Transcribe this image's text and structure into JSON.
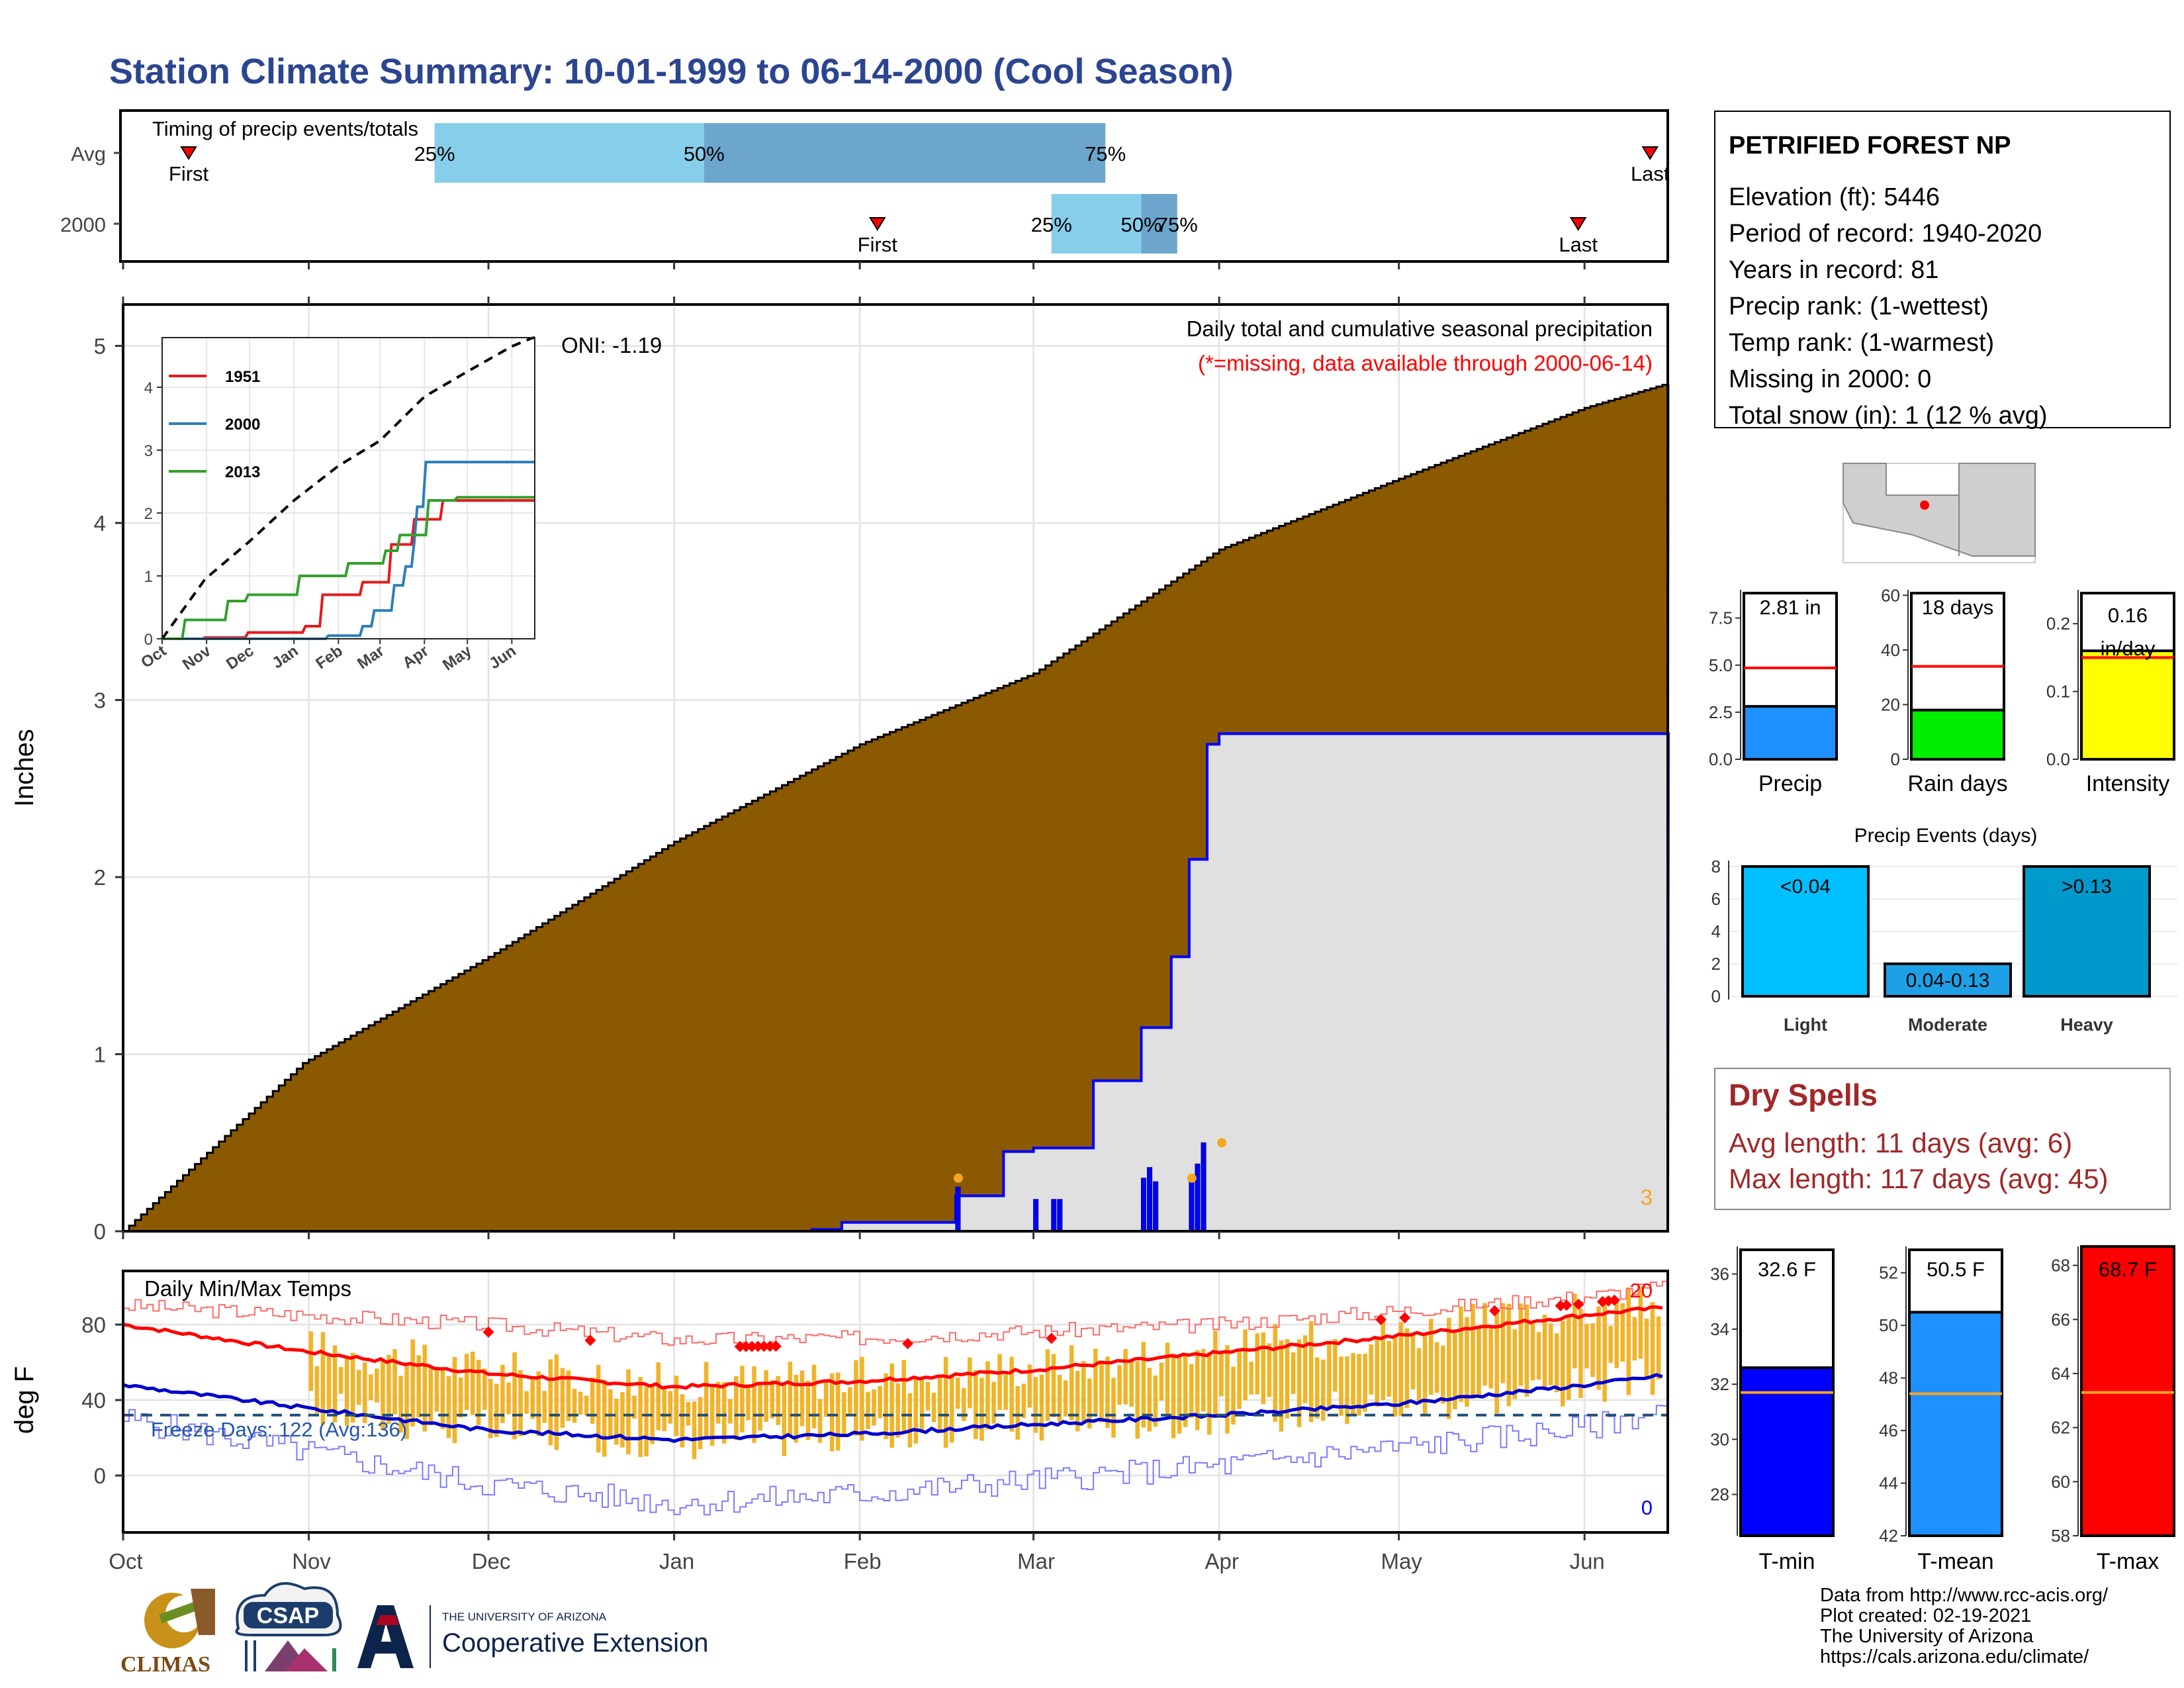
{
  "title": "Station Climate Summary: 10-01-1999 to 06-14-2000 (Cool Season)",
  "timing_panel": {
    "label": "Timing of precip events/totals",
    "rows": [
      {
        "name": "Avg",
        "first_label": "First",
        "last_label": "Last",
        "first": 1,
        "last": 245,
        "p25": 52,
        "p50": 97,
        "p75": 164,
        "p25_label": "25%",
        "p50_label": "50%",
        "p75_label": "75%"
      },
      {
        "name": "2000",
        "first_label": "First",
        "last_label": "Last",
        "first": 116,
        "last": 233,
        "p25": 155,
        "p50": 170,
        "p75": 176,
        "p25_label": "25%",
        "p50_label": "50%",
        "p75_label": "75%"
      }
    ]
  },
  "precip_panel": {
    "caption": "Daily total and cumulative seasonal precipitation",
    "missing_note": "(*=missing, data available through 2000-06-14)",
    "oni": "ONI: -1.19",
    "ylabel": "Inches",
    "yticks": [
      "0",
      "1",
      "2",
      "3",
      "4",
      "5"
    ],
    "missing_count": "3"
  },
  "inset": {
    "yticks": [
      "0",
      "1",
      "2",
      "3",
      "4"
    ],
    "xticks": [
      "Oct",
      "Nov",
      "Dec",
      "Jan",
      "Feb",
      "Mar",
      "Apr",
      "May",
      "Jun"
    ],
    "legend": [
      {
        "name": "1951",
        "color": "#e31a1c"
      },
      {
        "name": "2000",
        "color": "#2c7fb8"
      },
      {
        "name": "2013",
        "color": "#33a02c"
      }
    ]
  },
  "temp_panel": {
    "title": "Daily Min/Max Temps",
    "freeze_label": "Freeze Days: 122 (Avg:136)",
    "ylabel": "deg F",
    "yticks": [
      "0",
      "40",
      "80"
    ],
    "record_high_count": "20",
    "record_low_count": "0"
  },
  "months": [
    "Oct",
    "Nov",
    "Dec",
    "Jan",
    "Feb",
    "Mar",
    "Apr",
    "May",
    "Jun"
  ],
  "station": {
    "name": "PETRIFIED FOREST NP",
    "lines": [
      "Elevation (ft): 5446",
      "Period of record: 1940-2020",
      "Years in record: 81",
      "Precip rank:  (1-wettest)",
      "Temp rank:  (1-warmest)",
      "Missing in 2000: 0",
      "Total snow (in): 1 (12 % avg)"
    ]
  },
  "summary_bars": [
    {
      "label": "Precip",
      "value_label": "2.81 in",
      "color": "#1e90ff",
      "value": 2.81,
      "avg": 4.85,
      "ymax": 9,
      "ticks": [
        "0.0",
        "2.5",
        "5.0",
        "7.5"
      ],
      "tickvals": [
        0,
        2.5,
        5,
        7.5
      ]
    },
    {
      "label": "Rain days",
      "value_label": "18 days",
      "color": "#00ee00",
      "value": 18,
      "avg": 34,
      "ymax": 62,
      "ticks": [
        "0",
        "20",
        "40",
        "60"
      ],
      "tickvals": [
        0,
        20,
        40,
        60
      ]
    },
    {
      "label": "Intensity",
      "value_label": "0.16 in/day",
      "color": "#ffff00",
      "value": 0.16,
      "avg": 0.15,
      "ymax": 0.25,
      "ticks": [
        "0.0",
        "0.1",
        "0.2"
      ],
      "tickvals": [
        0,
        0.1,
        0.2
      ]
    }
  ],
  "precip_events": {
    "title": "Precip Events (days)",
    "yticks": [
      "0",
      "2",
      "4",
      "6",
      "8"
    ],
    "bars": [
      {
        "label": "Light",
        "inner": "<0.04",
        "value": 8,
        "color": "#00bfff"
      },
      {
        "label": "Moderate",
        "inner": "0.04-0.13",
        "value": 2,
        "color": "#1ea0e6"
      },
      {
        "label": "Heavy",
        "inner": ">0.13",
        "value": 8,
        "color": "#0099cc"
      }
    ]
  },
  "dry_spells": {
    "title": "Dry Spells",
    "avg_line": "Avg length: 11 days (avg: 6)",
    "max_line": "Max length: 117 days (avg: 45)"
  },
  "temp_bars": [
    {
      "label": "T-min",
      "value_label": "32.6 F",
      "color": "#0000ff",
      "value": 32.6,
      "avg": 31.7,
      "ymin": 26.5,
      "ymax": 37,
      "ticks": [
        "28",
        "30",
        "32",
        "34",
        "36"
      ],
      "tickvals": [
        28,
        30,
        32,
        34,
        36
      ]
    },
    {
      "label": "T-mean",
      "value_label": "50.5 F",
      "color": "#1e90ff",
      "value": 50.5,
      "avg": 47.4,
      "ymin": 42,
      "ymax": 53,
      "ticks": [
        "42",
        "44",
        "46",
        "48",
        "50",
        "52"
      ],
      "tickvals": [
        42,
        44,
        46,
        48,
        50,
        52
      ]
    },
    {
      "label": "T-max",
      "value_label": "68.7 F",
      "color": "#ff0000",
      "value": 68.7,
      "avg": 63.3,
      "ymin": 58,
      "ymax": 68.7,
      "ticks": [
        "58",
        "60",
        "62",
        "64",
        "66",
        "68"
      ],
      "tickvals": [
        58,
        60,
        62,
        64,
        66,
        68
      ]
    }
  ],
  "footer_lines": [
    "Data from http://www.rcc-acis.org/",
    "Plot created: 02-19-2021",
    "The University of Arizona",
    "https://cals.arizona.edu/climate/"
  ],
  "logos": {
    "climas": "CLIMAS",
    "csap": "CSAP",
    "ua_small": "THE UNIVERSITY OF ARIZONA",
    "ua_big": "Cooperative Extension"
  },
  "colors": {
    "title": "#2b4590",
    "cumavg": "#8b5a00",
    "cum2000": "#0000ff",
    "tempbar": "#f0b429"
  },
  "chart_data": [
    {
      "type": "area",
      "title": "Daily total and cumulative seasonal precipitation",
      "ylabel": "Inches",
      "ylim": [
        0,
        5.2
      ],
      "x_unit": "days since Oct 1",
      "series": [
        {
          "name": "Avg cumulative",
          "x": [
            0,
            30,
            61,
            92,
            123,
            152,
            183,
            213,
            244,
            257
          ],
          "y": [
            0,
            0.95,
            1.55,
            2.2,
            2.75,
            3.15,
            3.85,
            4.25,
            4.65,
            4.78
          ]
        },
        {
          "name": "2000 cumulative",
          "x": [
            0,
            115,
            120,
            139,
            147,
            152,
            162,
            170,
            175,
            178,
            181,
            183,
            240,
            257
          ],
          "y": [
            0,
            0.01,
            0.05,
            0.2,
            0.45,
            0.47,
            0.85,
            1.15,
            1.55,
            2.1,
            2.75,
            2.81,
            2.81,
            2.81
          ]
        },
        {
          "name": "2000 daily",
          "x": [
            139,
            152,
            155,
            156,
            170,
            171,
            172,
            178,
            179,
            180
          ],
          "y": [
            0.25,
            0.18,
            0.18,
            0.18,
            0.3,
            0.36,
            0.28,
            0.3,
            0.38,
            0.5
          ]
        }
      ]
    },
    {
      "type": "line",
      "title": "",
      "x_unit": "days since Oct 1",
      "ylim": [
        0,
        4.6
      ],
      "series": [
        {
          "name": "1951",
          "x": [
            0,
            30,
            60,
            100,
            112,
            140,
            160,
            175,
            195,
            245,
            260
          ],
          "y": [
            0,
            0.02,
            0.1,
            0.2,
            0.7,
            0.9,
            1.5,
            1.9,
            2.2,
            2.2,
            2.2
          ]
        },
        {
          "name": "2000",
          "x": [
            0,
            100,
            115,
            139,
            147,
            162,
            170,
            175,
            178,
            183,
            260
          ],
          "y": [
            0,
            0,
            0.05,
            0.2,
            0.45,
            0.85,
            1.15,
            1.55,
            2.1,
            2.81,
            2.81
          ]
        },
        {
          "name": "2013",
          "x": [
            0,
            15,
            45,
            60,
            95,
            130,
            155,
            165,
            185,
            205,
            260
          ],
          "y": [
            0,
            0.3,
            0.6,
            0.7,
            1.0,
            1.2,
            1.4,
            1.65,
            2.2,
            2.25,
            2.25
          ]
        },
        {
          "name": "Avg",
          "x": [
            0,
            30,
            61,
            92,
            123,
            152,
            183,
            213,
            244,
            260
          ],
          "y": [
            0,
            0.95,
            1.55,
            2.2,
            2.75,
            3.15,
            3.85,
            4.25,
            4.65,
            4.8
          ]
        }
      ]
    },
    {
      "type": "line",
      "title": "Daily Min/Max Temps",
      "ylabel": "deg F",
      "ylim": [
        -30,
        108
      ],
      "x_unit": "days since Oct 1",
      "series": [
        {
          "name": "Avg max",
          "x": [
            0,
            30,
            61,
            92,
            123,
            152,
            183,
            213,
            244,
            257
          ],
          "y": [
            80,
            66,
            54,
            47,
            50,
            56,
            65,
            74,
            85,
            89
          ]
        },
        {
          "name": "Avg min",
          "x": [
            0,
            30,
            61,
            92,
            123,
            152,
            183,
            213,
            244,
            257
          ],
          "y": [
            48,
            36,
            24,
            19,
            22,
            27,
            32,
            38,
            48,
            53
          ]
        },
        {
          "name": "Record max",
          "x": [
            0,
            61,
            92,
            123,
            183,
            244,
            257
          ],
          "y": [
            90,
            80,
            72,
            73,
            80,
            95,
            100
          ]
        },
        {
          "name": "Record min",
          "x": [
            0,
            61,
            92,
            123,
            183,
            244,
            257
          ],
          "y": [
            30,
            -5,
            -15,
            -10,
            5,
            25,
            35
          ]
        },
        {
          "name": "Freeze line",
          "x": [
            0,
            257
          ],
          "y": [
            32,
            32
          ]
        }
      ]
    }
  ]
}
